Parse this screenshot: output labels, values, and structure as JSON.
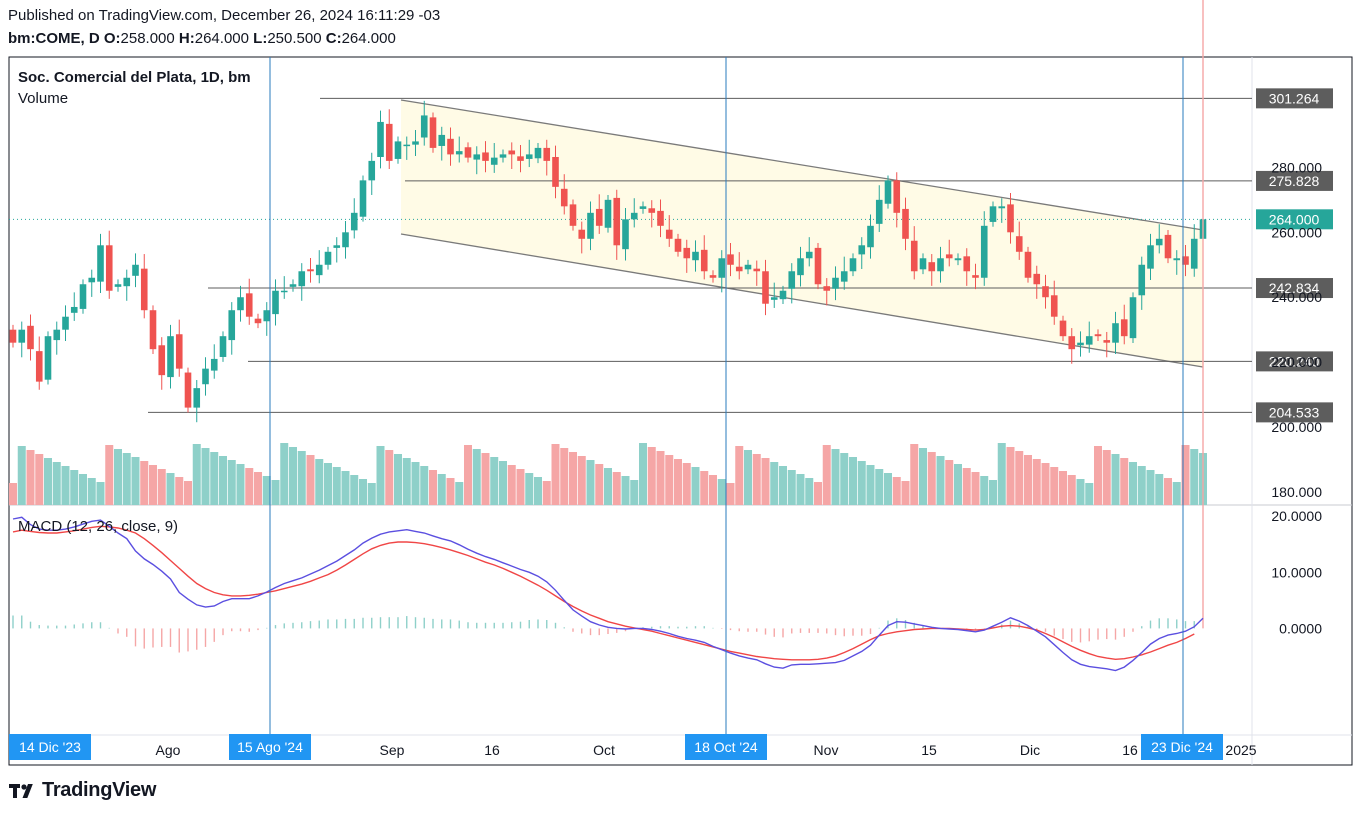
{
  "header": {
    "published": "Published on TradingView.com, December 26, 2024 16:11:29 -03",
    "symbol": "bm:COME, D",
    "o_label": "O:",
    "o_value": "258.000",
    "h_label": "H:",
    "h_value": "264.000",
    "l_label": "L:",
    "l_value": "250.500",
    "c_label": "C:",
    "c_value": "264.000"
  },
  "footer": {
    "brand": "TradingView",
    "logo_icon": "tradingview-logo-icon"
  },
  "colors": {
    "up": "#26a69a",
    "down": "#ef5350",
    "vol_up": "#8ed0c9",
    "vol_down": "#f5a6a6",
    "macd": "#5b4fe0",
    "signal": "#f04646",
    "vline": "#2a7bbd",
    "level_bg": "#5d5d5d",
    "last_bg": "#26a69a",
    "channel_fill": "#fffbe6"
  },
  "chart_data": [
    {
      "type": "candlestick",
      "title": "Soc. Comercial del Plata, 1D, bm",
      "subtitle": "Volume",
      "ylim": [
        176,
        314
      ],
      "y_ticks": [
        180,
        200,
        220,
        240,
        260,
        280
      ],
      "y_tick_labels": [
        "180.000",
        "200.000",
        "220.000",
        "240.000",
        "260.000",
        "280.000"
      ],
      "x_labels": [
        "Ago",
        "Sep",
        "16",
        "Oct",
        "Nov",
        "15",
        "Dic",
        "16",
        "2025"
      ],
      "date_markers": [
        "14 Dic '23",
        "15 Ago '24",
        "18 Oct '24",
        "23 Dic '24"
      ],
      "horizontal_levels": [
        {
          "value": 301.264,
          "label": "301.264"
        },
        {
          "value": 275.828,
          "label": "275.828"
        },
        {
          "value": 242.834,
          "label": "242.834"
        },
        {
          "value": 220.24,
          "label": "220.240"
        },
        {
          "value": 204.533,
          "label": "204.533"
        }
      ],
      "last_price": {
        "value": 264.0,
        "label": "264.000"
      },
      "closes": [
        226,
        230,
        224,
        214,
        228,
        230,
        234,
        237,
        244,
        246,
        256,
        242,
        244,
        246,
        250,
        236,
        224,
        216,
        228,
        218,
        206,
        212,
        218,
        221,
        228,
        236,
        240,
        234,
        232,
        236,
        242,
        242,
        244,
        248,
        248,
        250,
        254,
        256,
        260,
        266,
        276,
        282,
        294,
        282,
        288,
        287,
        288,
        296,
        286,
        290,
        284,
        285,
        283,
        284,
        282,
        283,
        284,
        284,
        282,
        284,
        286,
        282,
        274,
        268,
        262,
        258,
        266,
        262,
        270,
        256,
        264,
        266,
        268,
        266,
        262,
        258,
        254,
        252,
        254,
        248,
        246,
        252,
        250,
        248,
        250,
        248,
        238,
        240,
        242,
        248,
        252,
        254,
        244,
        242,
        246,
        248,
        252,
        256,
        262,
        270,
        276,
        266,
        258,
        248,
        252,
        248,
        252,
        252,
        252,
        248,
        246,
        262,
        268,
        268,
        260,
        254,
        246,
        244,
        240,
        234,
        228,
        224,
        226,
        228,
        228,
        226,
        232,
        228,
        240,
        250,
        256,
        258,
        252,
        252,
        250,
        258,
        264
      ],
      "macd": {
        "title": "MACD (12, 26, close, 9)",
        "ylim": [
          -19,
          22
        ],
        "y_ticks": [
          20,
          10,
          0
        ],
        "y_tick_labels": [
          "20.0000",
          "10.0000",
          "0.0000"
        ],
        "series": [
          {
            "name": "MACD",
            "values": [
              19.5,
              19.8,
              18.5,
              17.7,
              17.5,
              17.5,
              17.7,
              18.1,
              18.6,
              19.1,
              19.3,
              18.2,
              17.0,
              16.0,
              13.8,
              12.4,
              11.4,
              10.2,
              8.8,
              6.4,
              5.2,
              4.2,
              3.8,
              4.0,
              4.8,
              5.3,
              5.3,
              5.3,
              5.8,
              6.5,
              7.3,
              8.0,
              8.5,
              9.0,
              9.7,
              10.4,
              11.2,
              12.0,
              13.0,
              14.0,
              15.2,
              16.1,
              16.8,
              17.2,
              17.4,
              17.6,
              17.3,
              17.0,
              16.5,
              16.0,
              15.6,
              14.9,
              14.1,
              13.4,
              12.8,
              12.3,
              11.7,
              11.1,
              10.5,
              10.0,
              9.3,
              8.3,
              6.8,
              5.0,
              3.3,
              2.2,
              1.2,
              0.6,
              0.2,
              0.0,
              -0.1,
              0.0,
              0.0,
              -0.2,
              -0.5,
              -0.9,
              -1.4,
              -1.8,
              -2.1,
              -2.5,
              -3.2,
              -3.8,
              -4.4,
              -4.9,
              -5.3,
              -5.6,
              -6.3,
              -6.9,
              -7.1,
              -6.5,
              -6.4,
              -6.4,
              -6.3,
              -6.2,
              -6.1,
              -5.7,
              -4.9,
              -4.1,
              -3.0,
              -1.2,
              0.5,
              1.2,
              1.1,
              0.8,
              0.5,
              0.2,
              0.0,
              -0.1,
              -0.2,
              -0.4,
              -0.6,
              -0.3,
              0.4,
              1.1,
              1.9,
              1.3,
              0.5,
              -0.5,
              -1.5,
              -2.9,
              -4.3,
              -5.6,
              -6.4,
              -6.8,
              -7.0,
              -7.2,
              -7.5,
              -6.9,
              -5.7,
              -4.3,
              -2.8,
              -1.8,
              -1.2,
              -0.9,
              -0.5,
              0.3,
              1.8
            ]
          },
          {
            "name": "Signal",
            "values": [
              17.2,
              17.5,
              17.3,
              17.1,
              17.0,
              17.0,
              17.2,
              17.4,
              17.7,
              18.0,
              18.2,
              18.1,
              17.9,
              17.5,
              17.0,
              16.0,
              14.8,
              13.5,
              12.1,
              10.7,
              9.3,
              8.0,
              7.1,
              6.4,
              6.0,
              5.8,
              5.8,
              5.9,
              6.1,
              6.4,
              6.7,
              7.1,
              7.5,
              7.9,
              8.4,
              9.0,
              9.6,
              10.4,
              11.3,
              12.3,
              13.3,
              14.2,
              14.8,
              15.2,
              15.4,
              15.4,
              15.3,
              15.1,
              14.8,
              14.4,
              14.0,
              13.5,
              13.0,
              12.4,
              11.8,
              11.3,
              10.7,
              10.0,
              9.3,
              8.5,
              7.7,
              6.8,
              5.8,
              4.8,
              3.9,
              3.1,
              2.4,
              1.8,
              1.2,
              0.8,
              0.4,
              0.1,
              -0.2,
              -0.5,
              -0.9,
              -1.3,
              -1.7,
              -2.1,
              -2.5,
              -2.9,
              -3.3,
              -3.7,
              -4.1,
              -4.4,
              -4.7,
              -5.0,
              -5.2,
              -5.4,
              -5.5,
              -5.6,
              -5.6,
              -5.6,
              -5.5,
              -5.3,
              -4.9,
              -4.3,
              -3.6,
              -2.8,
              -2.0,
              -1.3,
              -0.9,
              -0.6,
              -0.4,
              -0.2,
              -0.1,
              0.0,
              0.0,
              0.0,
              -0.1,
              -0.2,
              -0.3,
              -0.2,
              0.1,
              0.4,
              0.5,
              0.4,
              0.1,
              -0.3,
              -0.9,
              -1.6,
              -2.4,
              -3.2,
              -3.9,
              -4.5,
              -5.0,
              -5.3,
              -5.5,
              -5.4,
              -5.1,
              -4.7,
              -4.2,
              -3.6,
              -3.0,
              -2.5,
              -1.8,
              -1.0
            ]
          }
        ]
      }
    }
  ]
}
